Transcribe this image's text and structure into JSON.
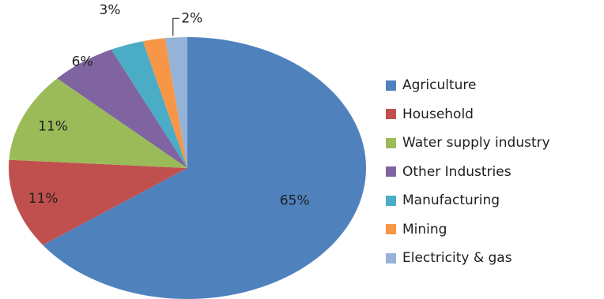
{
  "chart_data": {
    "type": "pie",
    "categories": [
      "Agriculture",
      "Household",
      "Water supply industry",
      "Other Industries",
      "Manufacturing",
      "Mining",
      "Electricity & gas"
    ],
    "values": [
      65,
      11,
      11,
      6,
      3,
      2,
      2
    ],
    "data_labels": [
      "65%",
      "11%",
      "11%",
      "6%",
      "3%",
      "2%",
      "2%"
    ],
    "colors": [
      "#4F81BD",
      "#C0504D",
      "#9BBB59",
      "#8064A2",
      "#4BACC6",
      "#F79646",
      "#95B3D7"
    ],
    "legend_position": "right",
    "title": ""
  }
}
